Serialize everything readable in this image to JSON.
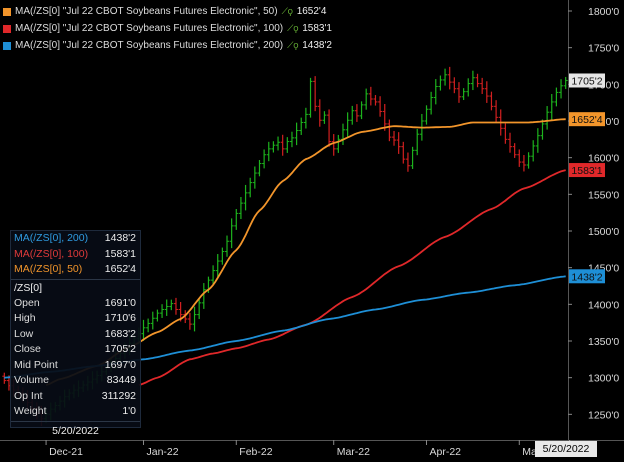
{
  "chart_data": {
    "type": "candlestick",
    "y_axis": {
      "ticks": [
        "1250'0",
        "1300'0",
        "1350'0",
        "1400'0",
        "1450'0",
        "1500'0",
        "1550'0",
        "1600'0",
        "1650'0",
        "1700'0",
        "1750'0",
        "1800'0"
      ],
      "tick_values": [
        1250,
        1300,
        1350,
        1400,
        1450,
        1500,
        1550,
        1600,
        1650,
        1700,
        1750,
        1800
      ],
      "ylim": [
        1215,
        1815
      ]
    },
    "x_axis": {
      "ticks": [
        "Dec-21",
        "Jan-22",
        "Feb-22",
        "Mar-22",
        "Apr-22",
        "May-"
      ],
      "tick_positions": [
        9,
        30,
        50,
        71,
        91,
        111
      ],
      "bars": 122
    },
    "price_series": {
      "name": "/ZS[0]",
      "up_color": "#1db31d",
      "down_color": "#d42020",
      "close": [
        1296,
        1289,
        1283,
        1279,
        1273,
        1266,
        1258,
        1251,
        1244,
        1250,
        1257,
        1262,
        1268,
        1274,
        1279,
        1283,
        1286,
        1290,
        1294,
        1298,
        1303,
        1308,
        1314,
        1320,
        1326,
        1333,
        1340,
        1347,
        1353,
        1360,
        1368,
        1374,
        1381,
        1388,
        1393,
        1397,
        1401,
        1393,
        1386,
        1380,
        1373,
        1386,
        1402,
        1420,
        1433,
        1446,
        1459,
        1472,
        1486,
        1507,
        1524,
        1538,
        1552,
        1566,
        1579,
        1592,
        1604,
        1612,
        1617,
        1621,
        1612,
        1622,
        1627,
        1637,
        1648,
        1659,
        1704,
        1670,
        1651,
        1658,
        1622,
        1612,
        1625,
        1638,
        1651,
        1664,
        1657,
        1672,
        1687,
        1680,
        1676,
        1663,
        1646,
        1628,
        1624,
        1615,
        1598,
        1589,
        1610,
        1632,
        1650,
        1666,
        1682,
        1697,
        1706,
        1713,
        1703,
        1694,
        1683,
        1690,
        1701,
        1709,
        1701,
        1694,
        1684,
        1670,
        1655,
        1640,
        1625,
        1615,
        1604,
        1594,
        1590,
        1602,
        1616,
        1630,
        1646,
        1662,
        1676,
        1689,
        1698,
        1705.25
      ],
      "last_label": "1705'2"
    },
    "series": [
      {
        "name": "MA(/ZS[0] \"Jul 22 CBOT Soybeans Futures Electronic\", 50)",
        "short": "MA(/ZS[0], 50)",
        "value": "1652'4",
        "last": 1652.5,
        "color": "#f2952b",
        "start": 9,
        "anchors": [
          [
            9,
            1290
          ],
          [
            12,
            1298
          ],
          [
            20,
            1316
          ],
          [
            27,
            1342
          ],
          [
            33,
            1362
          ],
          [
            38,
            1380
          ],
          [
            44,
            1420
          ],
          [
            50,
            1474
          ],
          [
            55,
            1528
          ],
          [
            60,
            1568
          ],
          [
            65,
            1598
          ],
          [
            71,
            1620
          ],
          [
            77,
            1635
          ],
          [
            84,
            1643
          ],
          [
            90,
            1641
          ],
          [
            96,
            1642
          ],
          [
            101,
            1648
          ],
          [
            107,
            1648
          ],
          [
            113,
            1648
          ],
          [
            121,
            1652.5
          ]
        ]
      },
      {
        "name": "MA(/ZS[0] \"Jul 22 CBOT Soybeans Futures Electronic\", 100)",
        "short": "MA(/ZS[0], 100)",
        "value": "1583'1",
        "last": 1583.125,
        "color": "#e0282a",
        "start": 29,
        "anchors": [
          [
            29,
            1290
          ],
          [
            33,
            1300
          ],
          [
            40,
            1325
          ],
          [
            45,
            1333
          ],
          [
            50,
            1340
          ],
          [
            57,
            1352
          ],
          [
            65,
            1372
          ],
          [
            75,
            1410
          ],
          [
            85,
            1452
          ],
          [
            95,
            1492
          ],
          [
            105,
            1530
          ],
          [
            112,
            1558
          ],
          [
            121,
            1583.1
          ]
        ]
      },
      {
        "name": "MA(/ZS[0] \"Jul 22 CBOT Soybeans Futures Electronic\", 200)",
        "short": "MA(/ZS[0], 200)",
        "value": "1438'2",
        "last": 1438.25,
        "color": "#1e8fd6",
        "start": 0,
        "anchors": [
          [
            0,
            1300
          ],
          [
            10,
            1308
          ],
          [
            20,
            1316
          ],
          [
            30,
            1325
          ],
          [
            40,
            1337
          ],
          [
            50,
            1350
          ],
          [
            60,
            1364
          ],
          [
            70,
            1380
          ],
          [
            80,
            1393
          ],
          [
            90,
            1406
          ],
          [
            100,
            1416
          ],
          [
            110,
            1426
          ],
          [
            121,
            1438.2
          ]
        ]
      }
    ]
  },
  "data_box": {
    "title": "/ZS[0]",
    "rows": [
      {
        "label": "Open",
        "value": "1691'0"
      },
      {
        "label": "High",
        "value": "1710'6"
      },
      {
        "label": "Low",
        "value": "1683'2"
      },
      {
        "label": "Close",
        "value": "1705'2"
      },
      {
        "label": "Mid Point",
        "value": "1697'0"
      },
      {
        "label": "Volume",
        "value": "83449"
      },
      {
        "label": "Op Int",
        "value": "311292"
      },
      {
        "label": "Weight",
        "value": "1'0"
      }
    ],
    "date": "5/20/2022"
  },
  "cursor": {
    "date": "5/20/2022"
  },
  "colors": {
    "background": "#000000",
    "axis_text": "#d9d9d9",
    "last_price_box": "#e6e6e6"
  }
}
